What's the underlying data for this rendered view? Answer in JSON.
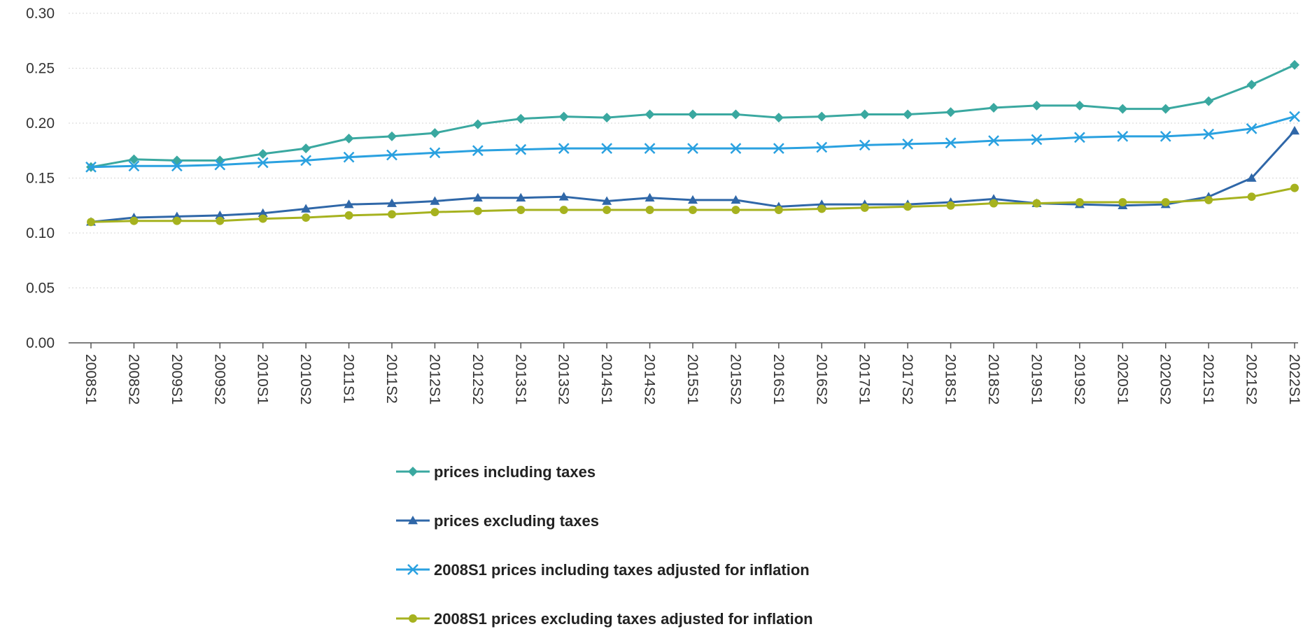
{
  "chart_data": {
    "type": "line",
    "title": "",
    "xlabel": "",
    "ylabel": "",
    "ylim": [
      0,
      0.3
    ],
    "y_ticks": [
      "0.00",
      "0.05",
      "0.10",
      "0.15",
      "0.20",
      "0.25",
      "0.30"
    ],
    "grid": "horizontal dotted",
    "legend_position": "bottom",
    "categories": [
      "2008S1",
      "2008S2",
      "2009S1",
      "2009S2",
      "2010S1",
      "2010S2",
      "2011S1",
      "2011S2",
      "2012S1",
      "2012S2",
      "2013S1",
      "2013S2",
      "2014S1",
      "2014S2",
      "2015S1",
      "2015S2",
      "2016S1",
      "2016S2",
      "2017S1",
      "2017S2",
      "2018S1",
      "2018S2",
      "2019S1",
      "2019S2",
      "2020S1",
      "2020S2",
      "2021S1",
      "2021S2",
      "2022S1"
    ],
    "series": [
      {
        "name": "prices including taxes",
        "color": "#3aa8a0",
        "marker": "diamond",
        "values": [
          0.16,
          0.167,
          0.166,
          0.166,
          0.172,
          0.177,
          0.186,
          0.188,
          0.191,
          0.199,
          0.204,
          0.206,
          0.205,
          0.208,
          0.208,
          0.208,
          0.205,
          0.206,
          0.208,
          0.208,
          0.21,
          0.214,
          0.216,
          0.216,
          0.213,
          0.213,
          0.22,
          0.235,
          0.253
        ]
      },
      {
        "name": "prices excluding taxes",
        "color": "#2f67a8",
        "marker": "triangle",
        "values": [
          0.11,
          0.114,
          0.115,
          0.116,
          0.118,
          0.122,
          0.126,
          0.127,
          0.129,
          0.132,
          0.132,
          0.133,
          0.129,
          0.132,
          0.13,
          0.13,
          0.124,
          0.126,
          0.126,
          0.126,
          0.128,
          0.131,
          0.127,
          0.126,
          0.125,
          0.126,
          0.133,
          0.15,
          0.193
        ]
      },
      {
        "name": "2008S1 prices including taxes adjusted for inflation",
        "color": "#2aa1e0",
        "marker": "x",
        "values": [
          0.16,
          0.161,
          0.161,
          0.162,
          0.164,
          0.166,
          0.169,
          0.171,
          0.173,
          0.175,
          0.176,
          0.177,
          0.177,
          0.177,
          0.177,
          0.177,
          0.177,
          0.178,
          0.18,
          0.181,
          0.182,
          0.184,
          0.185,
          0.187,
          0.188,
          0.188,
          0.19,
          0.195,
          0.206
        ]
      },
      {
        "name": "2008S1 prices excluding taxes adjusted for inflation",
        "color": "#a6b21f",
        "marker": "circle",
        "values": [
          0.11,
          0.111,
          0.111,
          0.111,
          0.113,
          0.114,
          0.116,
          0.117,
          0.119,
          0.12,
          0.121,
          0.121,
          0.121,
          0.121,
          0.121,
          0.121,
          0.121,
          0.122,
          0.123,
          0.124,
          0.125,
          0.127,
          0.127,
          0.128,
          0.128,
          0.128,
          0.13,
          0.133,
          0.141
        ]
      }
    ]
  }
}
